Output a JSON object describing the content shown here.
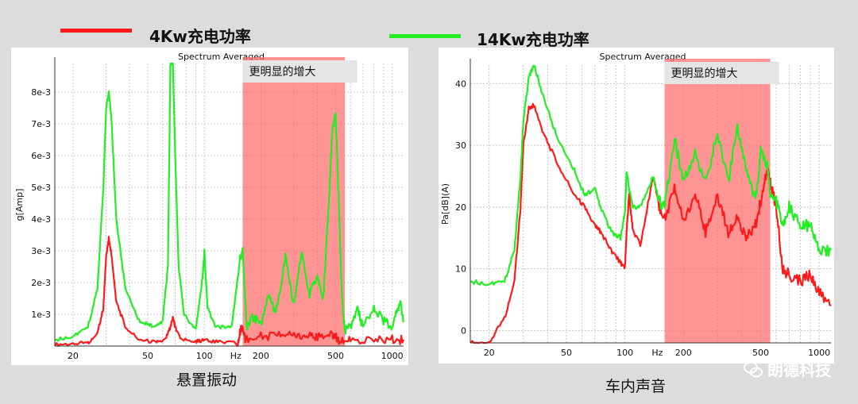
{
  "legend": {
    "items": [
      {
        "label": "4Kw充电功率",
        "color": "#ff1a1a"
      },
      {
        "label": "14Kw充电功率",
        "color": "#22ee22"
      }
    ]
  },
  "watermark": {
    "text": "朗德科技",
    "icon": "wechat-icon"
  },
  "chart_data": [
    {
      "type": "line",
      "title": "Spectrum Averaged",
      "caption": "悬置振动",
      "xlabel": "Hz",
      "ylabel": "g[Amp]",
      "xscale": "log",
      "xlim": [
        16,
        1150
      ],
      "ylim": [
        0,
        0.0089
      ],
      "xticks": [
        "20",
        "50",
        "100",
        "200",
        "500",
        "1000"
      ],
      "yticks": [
        "1e-3",
        "2e-3",
        "3e-3",
        "4e-3",
        "5e-3",
        "6e-3",
        "7e-3",
        "8e-3"
      ],
      "grid": true,
      "highlight": {
        "label": "更明显的增大",
        "x_range": [
          160,
          560
        ],
        "color": "#ff6b6b"
      },
      "series": [
        {
          "color": "#ff1a1a",
          "points": [
            [
              16,
              5e-05
            ],
            [
              20,
              7e-05
            ],
            [
              24,
              0.0001
            ],
            [
              27,
              0.0004
            ],
            [
              29,
              0.0012
            ],
            [
              30,
              0.0028
            ],
            [
              31,
              0.0034
            ],
            [
              32,
              0.0029
            ],
            [
              34,
              0.0014
            ],
            [
              38,
              0.0006
            ],
            [
              45,
              0.0002
            ],
            [
              55,
              0.00012
            ],
            [
              62,
              0.0002
            ],
            [
              66,
              0.0006
            ],
            [
              68,
              0.0009
            ],
            [
              70,
              0.0006
            ],
            [
              75,
              0.0002
            ],
            [
              90,
              0.00015
            ],
            [
              100,
              0.00018
            ],
            [
              120,
              0.00012
            ],
            [
              150,
              0.0001
            ],
            [
              158,
              0.0006
            ],
            [
              165,
              0.0002
            ],
            [
              200,
              0.0003
            ],
            [
              250,
              0.00035
            ],
            [
              300,
              0.0004
            ],
            [
              350,
              0.0003
            ],
            [
              400,
              0.0003
            ],
            [
              480,
              0.0004
            ],
            [
              520,
              0.0002
            ],
            [
              600,
              0.00015
            ],
            [
              800,
              0.0002
            ],
            [
              1000,
              0.0002
            ],
            [
              1150,
              0.0002
            ]
          ]
        },
        {
          "color": "#22ee22",
          "points": [
            [
              16,
              0.0002
            ],
            [
              20,
              0.0003
            ],
            [
              24,
              0.0006
            ],
            [
              27,
              0.0018
            ],
            [
              29,
              0.005
            ],
            [
              30,
              0.0075
            ],
            [
              31,
              0.008
            ],
            [
              32,
              0.0072
            ],
            [
              34,
              0.004
            ],
            [
              38,
              0.0018
            ],
            [
              45,
              0.0008
            ],
            [
              50,
              0.0007
            ],
            [
              55,
              0.0006
            ],
            [
              60,
              0.0008
            ],
            [
              64,
              0.0025
            ],
            [
              66,
              0.0089
            ],
            [
              68,
              0.0089
            ],
            [
              70,
              0.006
            ],
            [
              73,
              0.0025
            ],
            [
              78,
              0.001
            ],
            [
              90,
              0.0005
            ],
            [
              98,
              0.0022
            ],
            [
              100,
              0.003
            ],
            [
              104,
              0.0012
            ],
            [
              115,
              0.0006
            ],
            [
              140,
              0.0006
            ],
            [
              155,
              0.0028
            ],
            [
              160,
              0.003
            ],
            [
              168,
              0.0006
            ],
            [
              180,
              0.0009
            ],
            [
              200,
              0.0007
            ],
            [
              220,
              0.0016
            ],
            [
              240,
              0.001
            ],
            [
              270,
              0.0028
            ],
            [
              300,
              0.0013
            ],
            [
              330,
              0.003
            ],
            [
              360,
              0.0016
            ],
            [
              400,
              0.0022
            ],
            [
              430,
              0.0015
            ],
            [
              460,
              0.0045
            ],
            [
              480,
              0.0068
            ],
            [
              500,
              0.0073
            ],
            [
              520,
              0.0045
            ],
            [
              540,
              0.0015
            ],
            [
              560,
              0.0005
            ],
            [
              600,
              0.0006
            ],
            [
              650,
              0.0012
            ],
            [
              700,
              0.0006
            ],
            [
              800,
              0.0012
            ],
            [
              900,
              0.0008
            ],
            [
              1000,
              0.0006
            ],
            [
              1100,
              0.0014
            ],
            [
              1150,
              0.0008
            ]
          ]
        }
      ]
    },
    {
      "type": "line",
      "title": "Spectrum Averaged",
      "caption": "车内声音",
      "xlabel": "Hz",
      "ylabel": "Pa[dB](A)",
      "xscale": "log",
      "xlim": [
        16,
        1150
      ],
      "ylim": [
        -2,
        43
      ],
      "xticks": [
        "20",
        "50",
        "100",
        "200",
        "500",
        "1000"
      ],
      "yticks": [
        "0",
        "10",
        "20",
        "30",
        "40"
      ],
      "grid": true,
      "highlight": {
        "label": "更明显的增大",
        "x_range": [
          160,
          560
        ],
        "color": "#ff6b6b"
      },
      "series": [
        {
          "color": "#ff1a1a",
          "points": [
            [
              16,
              -2
            ],
            [
              20,
              -2
            ],
            [
              24,
              2
            ],
            [
              27,
              8
            ],
            [
              29,
              20
            ],
            [
              30,
              30
            ],
            [
              32,
              36
            ],
            [
              34,
              36.5
            ],
            [
              38,
              32
            ],
            [
              45,
              27
            ],
            [
              55,
              22
            ],
            [
              62,
              20
            ],
            [
              70,
              17
            ],
            [
              75,
              16
            ],
            [
              85,
              13
            ],
            [
              95,
              11
            ],
            [
              100,
              10
            ],
            [
              102,
              16
            ],
            [
              105,
              22
            ],
            [
              110,
              16
            ],
            [
              120,
              14
            ],
            [
              140,
              25
            ],
            [
              150,
              20
            ],
            [
              160,
              18
            ],
            [
              180,
              23
            ],
            [
              200,
              18
            ],
            [
              230,
              22
            ],
            [
              260,
              16
            ],
            [
              300,
              22
            ],
            [
              340,
              16
            ],
            [
              380,
              18
            ],
            [
              420,
              15
            ],
            [
              470,
              17
            ],
            [
              500,
              21
            ],
            [
              540,
              26
            ],
            [
              560,
              24
            ],
            [
              600,
              20
            ],
            [
              650,
              10
            ],
            [
              700,
              9
            ],
            [
              800,
              8
            ],
            [
              900,
              9
            ],
            [
              1000,
              6
            ],
            [
              1150,
              4
            ]
          ]
        },
        {
          "color": "#22ee22",
          "points": [
            [
              16,
              8
            ],
            [
              20,
              7.5
            ],
            [
              24,
              8
            ],
            [
              27,
              13
            ],
            [
              29,
              25
            ],
            [
              30,
              34
            ],
            [
              32,
              41
            ],
            [
              34,
              43
            ],
            [
              38,
              38
            ],
            [
              45,
              31
            ],
            [
              55,
              26
            ],
            [
              62,
              22
            ],
            [
              70,
              23
            ],
            [
              75,
              20
            ],
            [
              85,
              16
            ],
            [
              95,
              15
            ],
            [
              100,
              19
            ],
            [
              102,
              26
            ],
            [
              105,
              23
            ],
            [
              110,
              20
            ],
            [
              120,
              20
            ],
            [
              140,
              25
            ],
            [
              150,
              21
            ],
            [
              160,
              20
            ],
            [
              180,
              31
            ],
            [
              200,
              24
            ],
            [
              230,
              29
            ],
            [
              260,
              24
            ],
            [
              300,
              32
            ],
            [
              340,
              24
            ],
            [
              380,
              33
            ],
            [
              420,
              26
            ],
            [
              470,
              21
            ],
            [
              500,
              29
            ],
            [
              540,
              27
            ],
            [
              560,
              22
            ],
            [
              600,
              21
            ],
            [
              650,
              17
            ],
            [
              700,
              20
            ],
            [
              800,
              17
            ],
            [
              900,
              17
            ],
            [
              1000,
              13
            ],
            [
              1150,
              13
            ]
          ]
        }
      ]
    }
  ]
}
